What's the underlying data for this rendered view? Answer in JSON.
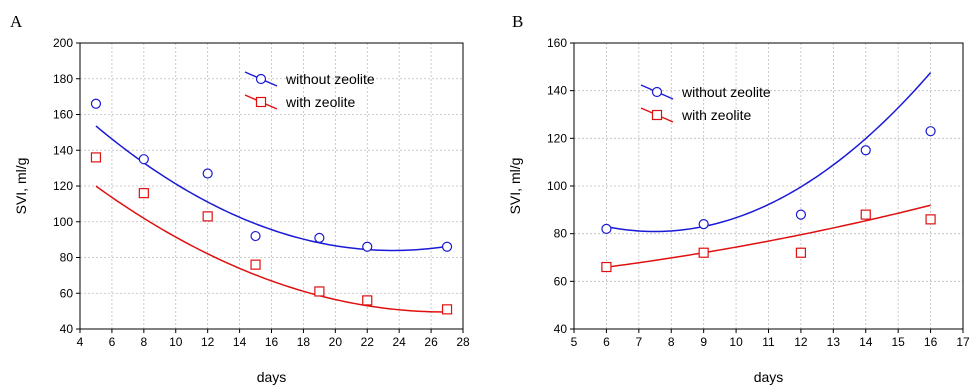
{
  "chart_data": [
    {
      "type": "scatter",
      "panel_label": "A",
      "xlabel": "days",
      "ylabel": "SVI, ml/g",
      "xlim": [
        4,
        28
      ],
      "ylim": [
        40,
        200
      ],
      "xticks": [
        4,
        6,
        8,
        10,
        12,
        14,
        16,
        18,
        20,
        22,
        24,
        26,
        28
      ],
      "yticks": [
        40,
        60,
        80,
        100,
        120,
        140,
        160,
        180,
        200
      ],
      "grid": true,
      "legend_position": "top-right",
      "series": [
        {
          "name": "without zeolite",
          "marker": "circle",
          "color": "#1a1ad6",
          "x": [
            5,
            8,
            12,
            15,
            19,
            22,
            27
          ],
          "y": [
            166,
            135,
            127,
            92,
            91,
            86,
            86
          ],
          "fit": [
            0.2009,
            -9.49,
            196.0
          ]
        },
        {
          "name": "with zeolite",
          "marker": "square",
          "color": "#e01010",
          "x": [
            5,
            8,
            12,
            15,
            19,
            22,
            27
          ],
          "y": [
            136,
            116,
            103,
            76,
            61,
            56,
            51
          ],
          "fit": [
            0.1472,
            -7.91,
            155.8
          ]
        }
      ]
    },
    {
      "type": "scatter",
      "panel_label": "B",
      "xlabel": "days",
      "ylabel": "SVI, ml/g",
      "xlim": [
        5,
        17
      ],
      "ylim": [
        40,
        160
      ],
      "xticks": [
        5,
        6,
        7,
        8,
        9,
        10,
        11,
        12,
        13,
        14,
        15,
        16,
        17
      ],
      "yticks": [
        40,
        60,
        80,
        100,
        120,
        140,
        160
      ],
      "grid": true,
      "legend_position": "top-left",
      "series": [
        {
          "name": "without zeolite",
          "marker": "circle",
          "color": "#1a1ad6",
          "x": [
            6,
            9,
            12,
            14,
            16
          ],
          "y": [
            82,
            84,
            88,
            115,
            123
          ],
          "fit": [
            0.921,
            -13.8,
            132.6
          ]
        },
        {
          "name": "with zeolite",
          "marker": "square",
          "color": "#e01010",
          "x": [
            6,
            9,
            12,
            14,
            16
          ],
          "y": [
            66,
            72,
            72,
            88,
            86
          ],
          "fit": [
            0.0817,
            0.8,
            58.2
          ]
        }
      ]
    }
  ]
}
